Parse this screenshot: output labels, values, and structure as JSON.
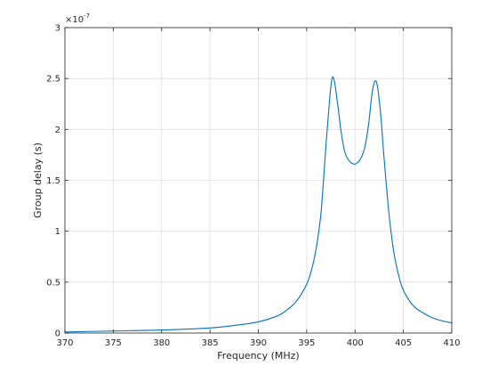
{
  "chart_data": {
    "type": "line",
    "title": "",
    "xlabel": "Frequency (MHz)",
    "ylabel": "Group delay (s)",
    "y_exponent_base": "×10",
    "y_exponent_power": "-7",
    "xlim": [
      370,
      410
    ],
    "ylim": [
      0,
      3
    ],
    "x_ticks": [
      370,
      375,
      380,
      385,
      390,
      395,
      400,
      405,
      410
    ],
    "y_ticks": [
      0,
      0.5,
      1,
      1.5,
      2,
      2.5,
      3
    ],
    "x_tick_labels": [
      "370",
      "375",
      "380",
      "385",
      "390",
      "395",
      "400",
      "405",
      "410"
    ],
    "y_tick_labels": [
      "0",
      "0.5",
      "1",
      "1.5",
      "2",
      "2.5",
      "3"
    ],
    "grid": true,
    "colors": {
      "series": "#0072bd",
      "grid": "#dfdfdf",
      "axis": "#262626"
    },
    "series": [
      {
        "x": [
          370,
          375,
          380,
          385,
          388,
          390,
          392,
          393,
          394,
          395,
          395.5,
          396,
          396.5,
          397,
          397.5,
          397.8,
          398.2,
          398.6,
          399,
          399.5,
          400,
          400.5,
          401,
          401.4,
          401.8,
          402.2,
          402.6,
          403,
          403.5,
          404,
          404.5,
          405,
          406,
          407,
          408,
          409,
          410
        ],
        "y": [
          0.01,
          0.02,
          0.03,
          0.05,
          0.08,
          0.11,
          0.17,
          0.23,
          0.32,
          0.48,
          0.62,
          0.84,
          1.2,
          1.85,
          2.42,
          2.5,
          2.25,
          1.95,
          1.76,
          1.68,
          1.66,
          1.7,
          1.82,
          2.05,
          2.38,
          2.47,
          2.2,
          1.72,
          1.18,
          0.8,
          0.57,
          0.42,
          0.27,
          0.2,
          0.15,
          0.12,
          0.1
        ]
      }
    ]
  }
}
